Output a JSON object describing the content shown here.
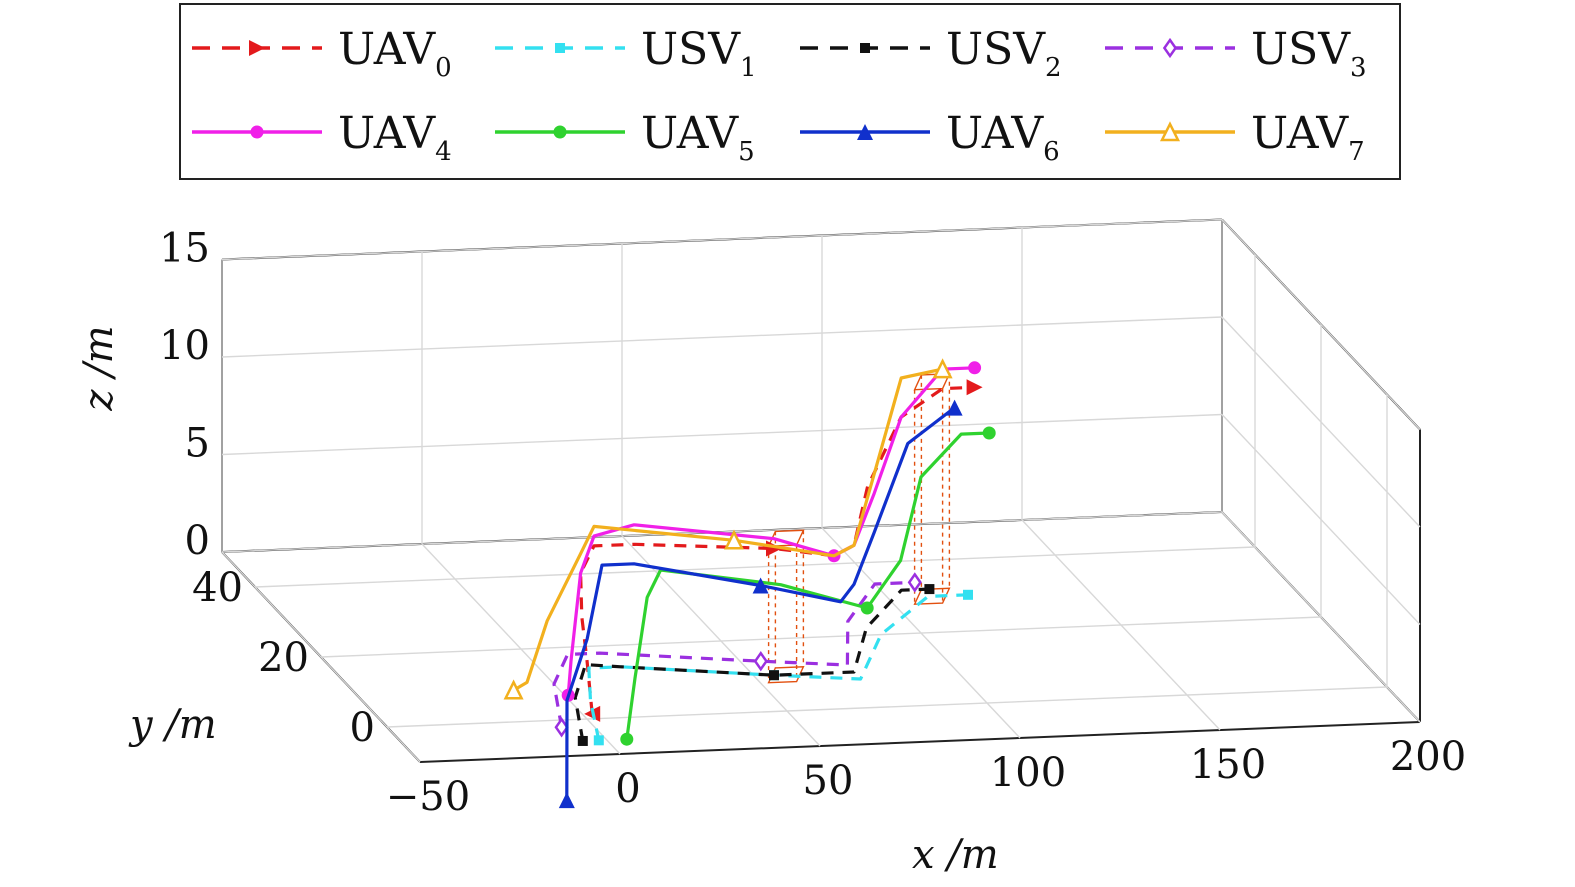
{
  "chart_data": {
    "type": "line",
    "dimensions": 3,
    "grid": true,
    "legend_placement": "top",
    "xlabel": "x /m",
    "ylabel": "y /m",
    "zlabel": "z /m",
    "xlim": [
      -50,
      200
    ],
    "ylim": [
      -10,
      50
    ],
    "zlim": [
      0,
      15
    ],
    "x_ticks": [
      "−50",
      "0",
      "50",
      "100",
      "150",
      "200"
    ],
    "y_ticks": [
      "0",
      "20",
      "40"
    ],
    "z_ticks": [
      "0",
      "5",
      "10",
      "15"
    ],
    "legend": [
      {
        "name": "UAV",
        "sub": "0",
        "color": "#e31a1c",
        "dash": true,
        "marker": "triangle-right"
      },
      {
        "name": "USV",
        "sub": "1",
        "color": "#33e0f0",
        "dash": true,
        "marker": "square"
      },
      {
        "name": "USV",
        "sub": "2",
        "color": "#111111",
        "dash": true,
        "marker": "square"
      },
      {
        "name": "USV",
        "sub": "3",
        "color": "#9b30e0",
        "dash": true,
        "marker": "diamond-open"
      },
      {
        "name": "UAV",
        "sub": "4",
        "color": "#f020e8",
        "dash": false,
        "marker": "circle"
      },
      {
        "name": "UAV",
        "sub": "5",
        "color": "#2fd22f",
        "dash": false,
        "marker": "circle"
      },
      {
        "name": "UAV",
        "sub": "6",
        "color": "#1030cc",
        "dash": false,
        "marker": "triangle-up"
      },
      {
        "name": "UAV",
        "sub": "7",
        "color": "#f2b01e",
        "dash": false,
        "marker": "triangle-up-open"
      }
    ],
    "series": [
      {
        "name": "UAV0",
        "points": [
          [
            -2,
            -4,
            1
          ],
          [
            0,
            0,
            3
          ],
          [
            2,
            4,
            4.5
          ],
          [
            5,
            8,
            6
          ],
          [
            10,
            10,
            7
          ],
          [
            20,
            10,
            7
          ],
          [
            55,
            10,
            6.5
          ],
          [
            70,
            10,
            6
          ],
          [
            75,
            10,
            6.5
          ],
          [
            85,
            18,
            8
          ],
          [
            100,
            26,
            10
          ],
          [
            112,
            28,
            11
          ],
          [
            120,
            28,
            11
          ]
        ]
      },
      {
        "name": "USV1",
        "points": [
          [
            -2,
            -6,
            0
          ],
          [
            5,
            5,
            0
          ],
          [
            12,
            14,
            0
          ],
          [
            20,
            14,
            0
          ],
          [
            55,
            10,
            0
          ],
          [
            75,
            8,
            0
          ],
          [
            90,
            20,
            0
          ],
          [
            110,
            30,
            0
          ],
          [
            120,
            30,
            0
          ]
        ]
      },
      {
        "name": "USV2",
        "points": [
          [
            -6,
            -6,
            0
          ],
          [
            2,
            6,
            0
          ],
          [
            12,
            15,
            0
          ],
          [
            20,
            14,
            0
          ],
          [
            55,
            10,
            0
          ],
          [
            75,
            10,
            0
          ],
          [
            88,
            22,
            0
          ],
          [
            105,
            32,
            0
          ],
          [
            112,
            32,
            0
          ]
        ]
      },
      {
        "name": "USV3",
        "points": [
          [
            -8,
            -2,
            0
          ],
          [
            0,
            10,
            0
          ],
          [
            10,
            18,
            0
          ],
          [
            18,
            18,
            0
          ],
          [
            55,
            14,
            0
          ],
          [
            75,
            12,
            0
          ],
          [
            85,
            24,
            0
          ],
          [
            100,
            34,
            0
          ],
          [
            110,
            34,
            0
          ]
        ]
      },
      {
        "name": "UAV4",
        "points": [
          [
            -8,
            -4,
            2
          ],
          [
            -4,
            0,
            3
          ],
          [
            5,
            8,
            6
          ],
          [
            10,
            10,
            7.5
          ],
          [
            20,
            10,
            8
          ],
          [
            55,
            10,
            7
          ],
          [
            70,
            10,
            6
          ],
          [
            75,
            10,
            6.5
          ],
          [
            85,
            16,
            8
          ],
          [
            100,
            26,
            10
          ],
          [
            112,
            28,
            12
          ],
          [
            120,
            28,
            12
          ]
        ]
      },
      {
        "name": "UAV5",
        "points": [
          [
            5,
            -6,
            0
          ],
          [
            12,
            0,
            2
          ],
          [
            20,
            6,
            5
          ],
          [
            25,
            8,
            6
          ],
          [
            55,
            8,
            5
          ],
          [
            75,
            6,
            4
          ],
          [
            85,
            8,
            6
          ],
          [
            100,
            20,
            8
          ],
          [
            115,
            26,
            9
          ],
          [
            122,
            26,
            9
          ]
        ]
      },
      {
        "name": "UAV6",
        "points": [
          [
            -10,
            -6,
            -3
          ],
          [
            -5,
            0,
            1
          ],
          [
            5,
            6,
            3
          ],
          [
            12,
            10,
            6
          ],
          [
            20,
            10,
            6
          ],
          [
            50,
            8,
            5
          ],
          [
            70,
            8,
            4
          ],
          [
            75,
            10,
            4.5
          ],
          [
            85,
            16,
            6
          ],
          [
            100,
            24,
            9
          ],
          [
            115,
            28,
            10
          ]
        ]
      },
      {
        "name": "UAV7",
        "points": [
          [
            -20,
            -2,
            2
          ],
          [
            -15,
            0,
            2
          ],
          [
            -5,
            6,
            4
          ],
          [
            5,
            8,
            7
          ],
          [
            10,
            10,
            8
          ],
          [
            45,
            10,
            7
          ],
          [
            70,
            10,
            6
          ],
          [
            75,
            10,
            6.5
          ],
          [
            85,
            16,
            9
          ],
          [
            100,
            26,
            12
          ],
          [
            112,
            28,
            12
          ]
        ]
      }
    ],
    "droplines": [
      {
        "color": "#e25010",
        "from": [
          [
            52,
            8,
            7
          ],
          [
            59,
            8,
            7
          ],
          [
            64,
            12,
            7
          ],
          [
            57,
            12,
            7
          ]
        ],
        "to": [
          [
            52,
            8,
            0
          ],
          [
            59,
            8,
            0
          ],
          [
            64,
            12,
            0
          ],
          [
            57,
            12,
            0
          ]
        ]
      },
      {
        "color": "#e25010",
        "from": [
          [
            105,
            28,
            11
          ],
          [
            112,
            28,
            11
          ],
          [
            117,
            32,
            11
          ],
          [
            110,
            32,
            11
          ]
        ],
        "to": [
          [
            105,
            28,
            0
          ],
          [
            112,
            28,
            0
          ],
          [
            117,
            32,
            0
          ],
          [
            110,
            32,
            0
          ]
        ]
      }
    ]
  }
}
